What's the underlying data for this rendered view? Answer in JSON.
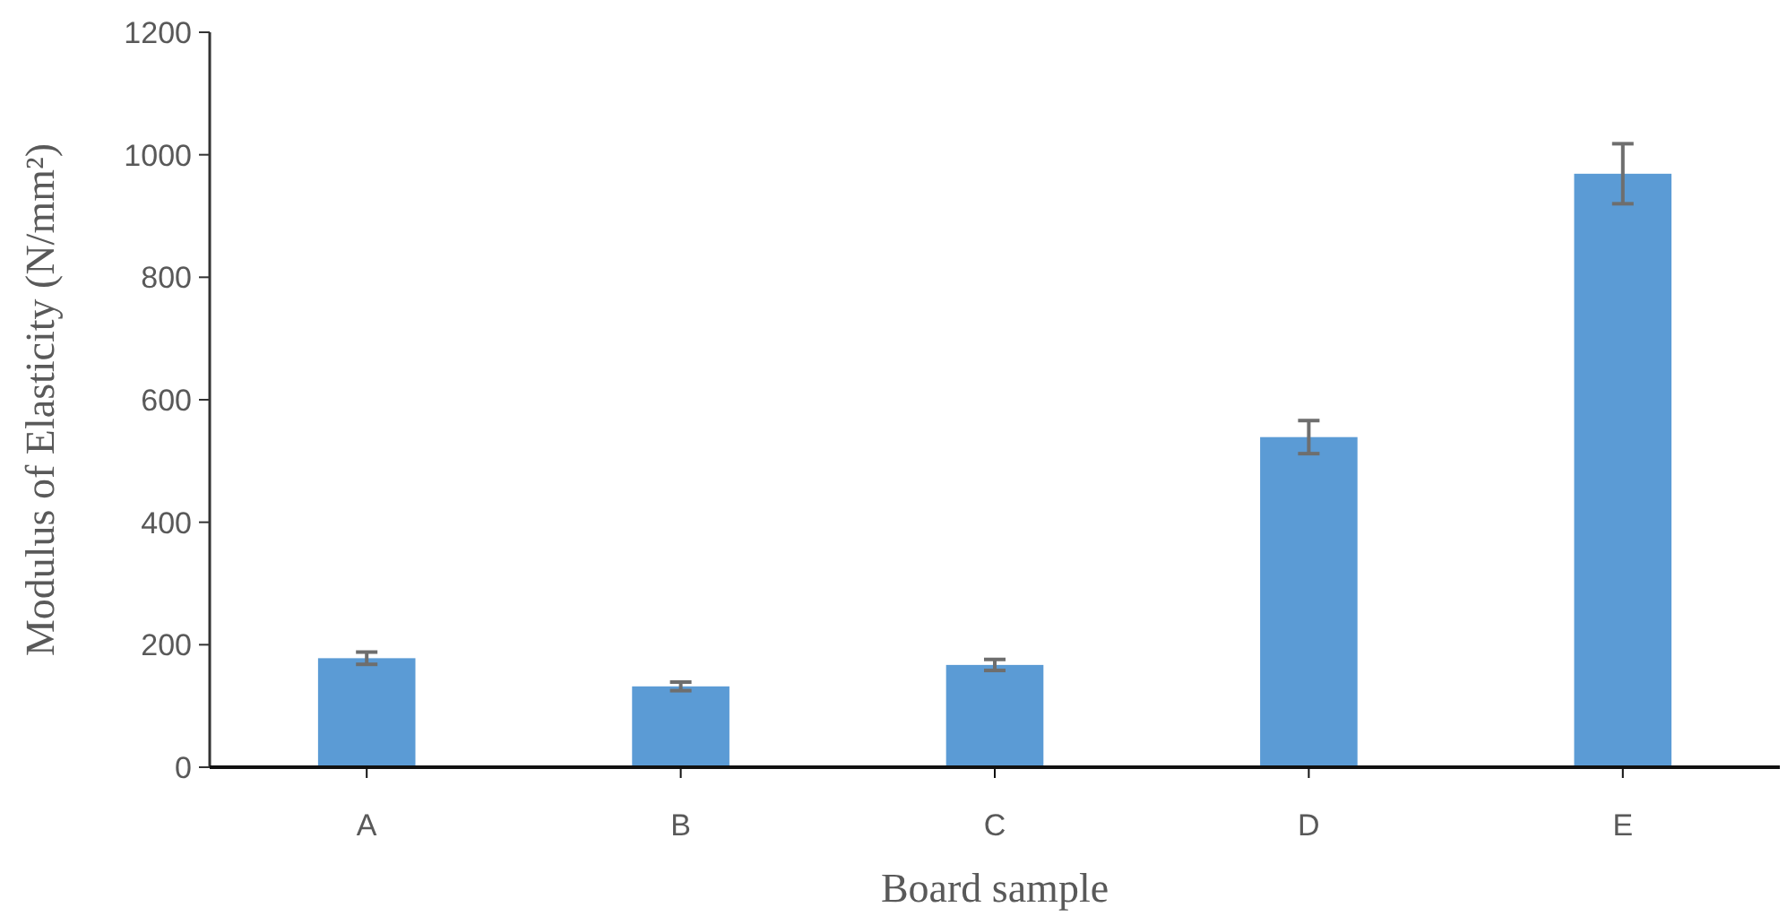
{
  "chart_data": {
    "type": "bar",
    "xlabel": "Board sample",
    "ylabel": "Modulus of Elasticity (N/mm²)",
    "categories": [
      "A",
      "B",
      "C",
      "D",
      "E"
    ],
    "values": [
      178,
      132,
      167,
      539,
      969
    ],
    "errors": [
      10,
      7,
      9,
      27,
      49
    ],
    "color": "#5b9bd5",
    "ylim": [
      0,
      1200
    ],
    "yticks": [
      0,
      200,
      400,
      600,
      800,
      1000,
      1200
    ],
    "grid": false
  }
}
